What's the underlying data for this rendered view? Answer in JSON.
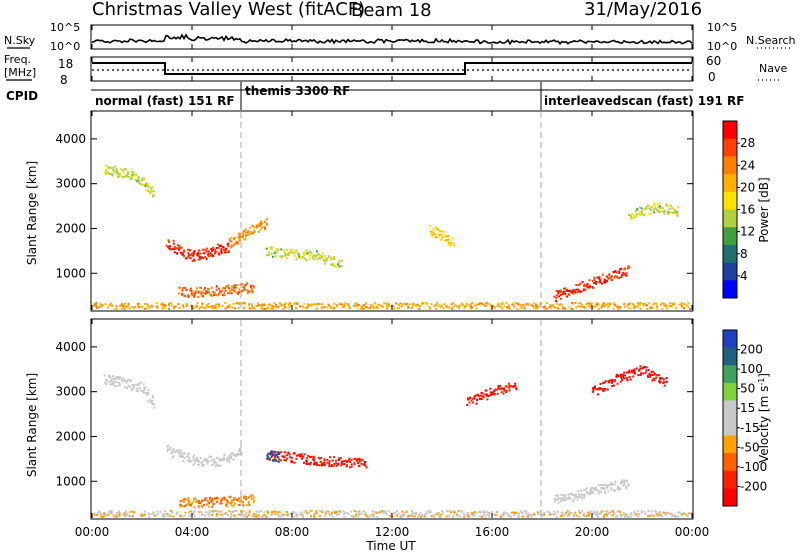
{
  "header": {
    "title": "Christmas Valley West (fitACF)",
    "beam": "Beam 18",
    "date": "31/May/2016"
  },
  "panels": {
    "nsky": {
      "label": "N.Sky",
      "right_label": "N.Search",
      "ticks": [
        "10^5",
        "10^0"
      ]
    },
    "freq": {
      "label_line1": "Freq.",
      "label_line2": "[MHz]",
      "right_label": "Nave",
      "ticks_left": [
        "18",
        "8"
      ],
      "ticks_right": [
        "60",
        "0"
      ]
    },
    "cpid": {
      "label": "CPID",
      "modes": [
        {
          "label": "normal (fast) 151 RF",
          "start": 0.0,
          "end": 6.0
        },
        {
          "label": "themis 3300 RF",
          "start": 6.0,
          "end": 18.0
        },
        {
          "label": "interleavedscan (fast) 191 RF",
          "start": 18.0,
          "end": 24.0
        }
      ]
    }
  },
  "colorbars": {
    "power": {
      "label": "Power [dB]",
      "ticks": [
        "28",
        "24",
        "20",
        "16",
        "12",
        "8",
        "4"
      ],
      "colors": [
        "#ff0000",
        "#ff4000",
        "#ff8000",
        "#ffb000",
        "#ffe000",
        "#b0d040",
        "#40a040",
        "#207070",
        "#2040a0",
        "#0000ff"
      ]
    },
    "velocity": {
      "label_main": "Velocity [m s",
      "label_sup": "-1",
      "label_end": "]",
      "ticks": [
        "200",
        "100",
        "50",
        "15",
        "-15",
        "-50",
        "-100",
        "-200"
      ],
      "colors": [
        "#2040c0",
        "#206080",
        "#40a060",
        "#80d040",
        "#c8c8c8",
        "#c8c8c8",
        "#ffa000",
        "#ff6000",
        "#ff2000",
        "#ff0000"
      ]
    }
  },
  "axes": {
    "ylabel": "Slant Range [km]",
    "xlabel": "Time UT",
    "yticks": [
      "4000",
      "3000",
      "2000",
      "1000"
    ],
    "xticks": [
      "00:00",
      "04:00",
      "08:00",
      "12:00",
      "16:00",
      "20:00",
      "00:00"
    ]
  },
  "chart_data": [
    {
      "type": "heatmap",
      "title": "Power [dB]",
      "xlabel": "",
      "ylabel": "Slant Range [km]",
      "xlim": [
        0,
        24
      ],
      "ylim": [
        180,
        4600
      ],
      "clim": [
        0,
        30
      ],
      "series": [
        {
          "x": [
            0.5,
            1.0,
            1.5,
            2.0,
            2.5
          ],
          "y": [
            3350,
            3280,
            3200,
            3100,
            2700
          ],
          "value": 14
        },
        {
          "x": [
            3.0,
            3.5,
            4.0,
            4.5,
            5.0,
            5.5
          ],
          "y": [
            1700,
            1500,
            1400,
            1450,
            1550,
            1600
          ],
          "value": 27
        },
        {
          "x": [
            5.5,
            6.0,
            6.5,
            7.0
          ],
          "y": [
            1700,
            1850,
            2000,
            2150
          ],
          "value": 22
        },
        {
          "x": [
            3.5,
            4.5,
            5.5,
            6.5
          ],
          "y": [
            600,
            600,
            650,
            700
          ],
          "value": 24
        },
        {
          "x": [
            7.0,
            8.0,
            9.0,
            10.0
          ],
          "y": [
            1500,
            1450,
            1400,
            1200
          ],
          "value": 14
        },
        {
          "x": [
            13.5,
            14.0,
            14.5
          ],
          "y": [
            2000,
            1850,
            1700
          ],
          "value": 18
        },
        {
          "x": [
            18.5,
            19.5,
            20.5,
            21.5
          ],
          "y": [
            500,
            700,
            900,
            1100
          ],
          "value": 27
        },
        {
          "x": [
            21.5,
            22.5,
            23.5
          ],
          "y": [
            2300,
            2500,
            2400
          ],
          "value": 14
        },
        {
          "x": [
            0.0,
            6.0,
            12.0,
            18.0,
            24.0
          ],
          "y": [
            250,
            250,
            250,
            250,
            250
          ],
          "value": 20
        }
      ]
    },
    {
      "type": "heatmap",
      "title": "Velocity [m s-1]",
      "xlabel": "Time UT",
      "ylabel": "Slant Range [km]",
      "xlim": [
        0,
        24
      ],
      "ylim": [
        180,
        4600
      ],
      "clim": [
        -200,
        200
      ],
      "series": [
        {
          "x": [
            0.5,
            1.0,
            2.0,
            2.5
          ],
          "y": [
            3300,
            3250,
            3100,
            2700
          ],
          "value": 0
        },
        {
          "x": [
            3.0,
            4.0,
            5.0,
            6.0
          ],
          "y": [
            1700,
            1500,
            1450,
            1700
          ],
          "value": 0
        },
        {
          "x": [
            7.0,
            8.0,
            9.0,
            10.0,
            11.0
          ],
          "y": [
            1600,
            1550,
            1480,
            1450,
            1420
          ],
          "value": -150
        },
        {
          "x": [
            7.0,
            7.5
          ],
          "y": [
            1600,
            1550
          ],
          "value": 150
        },
        {
          "x": [
            3.5,
            5.0,
            6.5
          ],
          "y": [
            550,
            550,
            600
          ],
          "value": -80
        },
        {
          "x": [
            15.0,
            16.0,
            17.0
          ],
          "y": [
            2800,
            3000,
            3200
          ],
          "value": -150
        },
        {
          "x": [
            20.0,
            21.0,
            22.0,
            23.0
          ],
          "y": [
            3000,
            3300,
            3500,
            3200
          ],
          "value": -180
        },
        {
          "x": [
            18.5,
            20.0,
            21.5
          ],
          "y": [
            600,
            800,
            1000
          ],
          "value": 0
        },
        {
          "x": [
            0.0,
            8.0,
            16.0,
            24.0
          ],
          "y": [
            250,
            250,
            250,
            250
          ],
          "value": -30
        }
      ]
    }
  ]
}
